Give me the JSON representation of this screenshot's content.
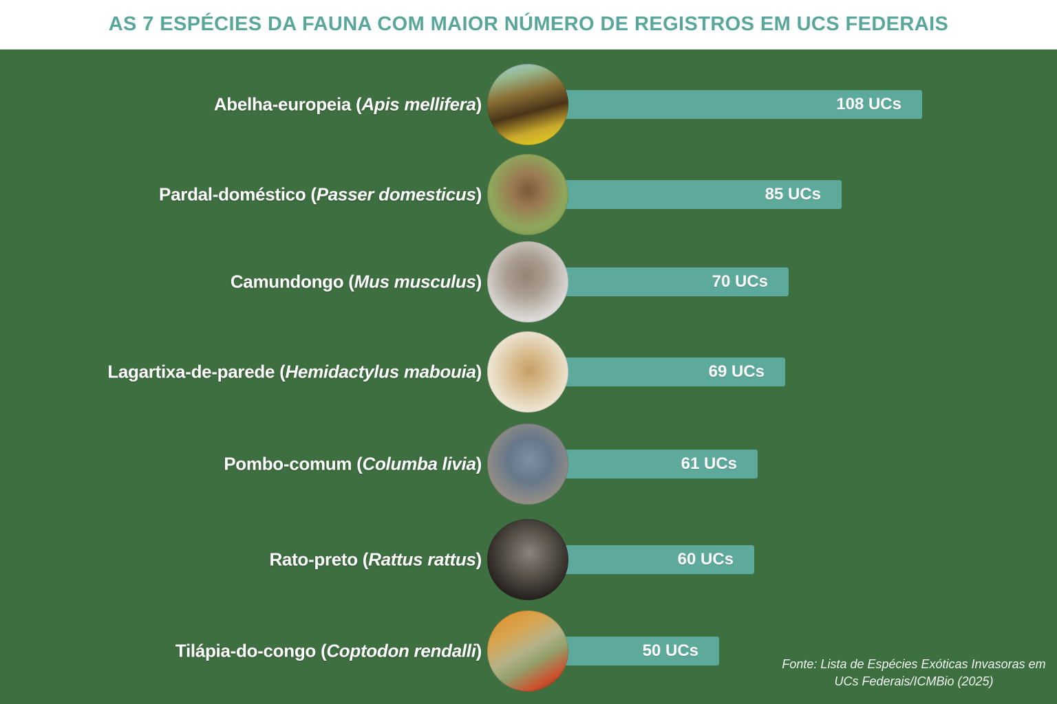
{
  "header": {
    "title": "AS 7 ESPÉCIES DA FAUNA COM MAIOR NÚMERO DE REGISTROS EM UCS FEDERAIS"
  },
  "colors": {
    "page_background": "#3E6F40",
    "header_background": "#FFFFFF",
    "title_text": "#58A79A",
    "bar_fill": "#5DAA9C",
    "label_text": "#FFFFFF",
    "value_text": "#FFFFFF",
    "footer_text": "#F1F4F1"
  },
  "punctuation": {
    "paren_open": " (",
    "paren_close": ")"
  },
  "rows": [
    {
      "common_name": "Abelha-europeia",
      "scientific_name": "Apis mellifera",
      "value": 108,
      "value_label": "108 UCs",
      "photo": {
        "name": "honeybee-photo",
        "gradient_type": "linear",
        "angle": "165deg",
        "stops": [
          "#A7C9E4 0%",
          "#97B98F 18%",
          "#8A6F35 38%",
          "#4A3418 58%",
          "#CAA92C 78%",
          "#ECD71C 100%"
        ]
      }
    },
    {
      "common_name": "Pardal-doméstico",
      "scientific_name": "Passer domesticus",
      "value": 85,
      "value_label": "85 UCs",
      "photo": {
        "name": "house-sparrow-photo",
        "gradient_type": "radial",
        "center": "50% 45%",
        "stops": [
          "#7B5A38 0%",
          "#9A7B52 28%",
          "#8FA75C 62%",
          "#6D9048 100%"
        ]
      }
    },
    {
      "common_name": "Camundongo",
      "scientific_name": "Mus musculus",
      "value": 70,
      "value_label": "70 UCs",
      "photo": {
        "name": "house-mouse-photo",
        "gradient_type": "radial",
        "center": "48% 42%",
        "stops": [
          "#938472 0%",
          "#AB9F92 32%",
          "#D9D7D3 68%",
          "#F3F2F0 100%"
        ]
      }
    },
    {
      "common_name": "Lagartixa-de-parede",
      "scientific_name": "Hemidactylus mabouia",
      "value": 69,
      "value_label": "69 UCs",
      "photo": {
        "name": "gecko-photo",
        "gradient_type": "radial",
        "center": "52% 48%",
        "stops": [
          "#C79E66 0%",
          "#D9BD90 30%",
          "#ECE5D4 68%",
          "#F7F3E9 100%"
        ]
      }
    },
    {
      "common_name": "Pombo-comum",
      "scientific_name": "Columba livia",
      "value": 61,
      "value_label": "61 UCs",
      "photo": {
        "name": "pigeon-photo",
        "gradient_type": "radial",
        "center": "52% 45%",
        "stops": [
          "#7E8FA0 0%",
          "#66788A 35%",
          "#938D86 70%",
          "#B3ABA1 100%"
        ]
      }
    },
    {
      "common_name": "Rato-preto",
      "scientific_name": "Rattus rattus",
      "value": 60,
      "value_label": "60 UCs",
      "photo": {
        "name": "black-rat-photo",
        "gradient_type": "radial",
        "center": "52% 42%",
        "stops": [
          "#8A837E 0%",
          "#565049 38%",
          "#27221F 72%",
          "#7C5530 100%"
        ]
      }
    },
    {
      "common_name": "Tilápia-do-congo",
      "scientific_name": "Coptodon rendalli",
      "value": 50,
      "value_label": "50 UCs",
      "photo": {
        "name": "tilapia-fish-photo",
        "gradient_type": "linear",
        "angle": "150deg",
        "stops": [
          "#DF8A24 0%",
          "#D9A44E 28%",
          "#B5B288 48%",
          "#93A06B 62%",
          "#CD4F2C 82%",
          "#3F3116 100%"
        ]
      }
    }
  ],
  "footer": {
    "line1": "Fonte: Lista de Espécies Exóticas Invasoras em",
    "line2": "UCs Federais/ICMBio (2025)"
  },
  "chart_data": {
    "type": "bar",
    "orientation": "horizontal",
    "title": "AS 7 ESPÉCIES DA FAUNA COM MAIOR NÚMERO DE REGISTROS EM UCS FEDERAIS",
    "categories": [
      "Abelha-europeia (Apis mellifera)",
      "Pardal-doméstico (Passer domesticus)",
      "Camundongo (Mus musculus)",
      "Lagartixa-de-parede (Hemidactylus mabouia)",
      "Pombo-comum (Columba livia)",
      "Rato-preto (Rattus rattus)",
      "Tilápia-do-congo (Coptodon rendalli)"
    ],
    "values": [
      108,
      85,
      70,
      69,
      61,
      60,
      50
    ],
    "value_unit": "UCs",
    "xlim": [
      0,
      108
    ],
    "grid": false,
    "legend": false,
    "data_labels": [
      "108 UCs",
      "85 UCs",
      "70 UCs",
      "69 UCs",
      "61 UCs",
      "60 UCs",
      "50 UCs"
    ],
    "source": "Fonte: Lista de Espécies Exóticas Invasoras em UCs Federais/ICMBio (2025)"
  }
}
